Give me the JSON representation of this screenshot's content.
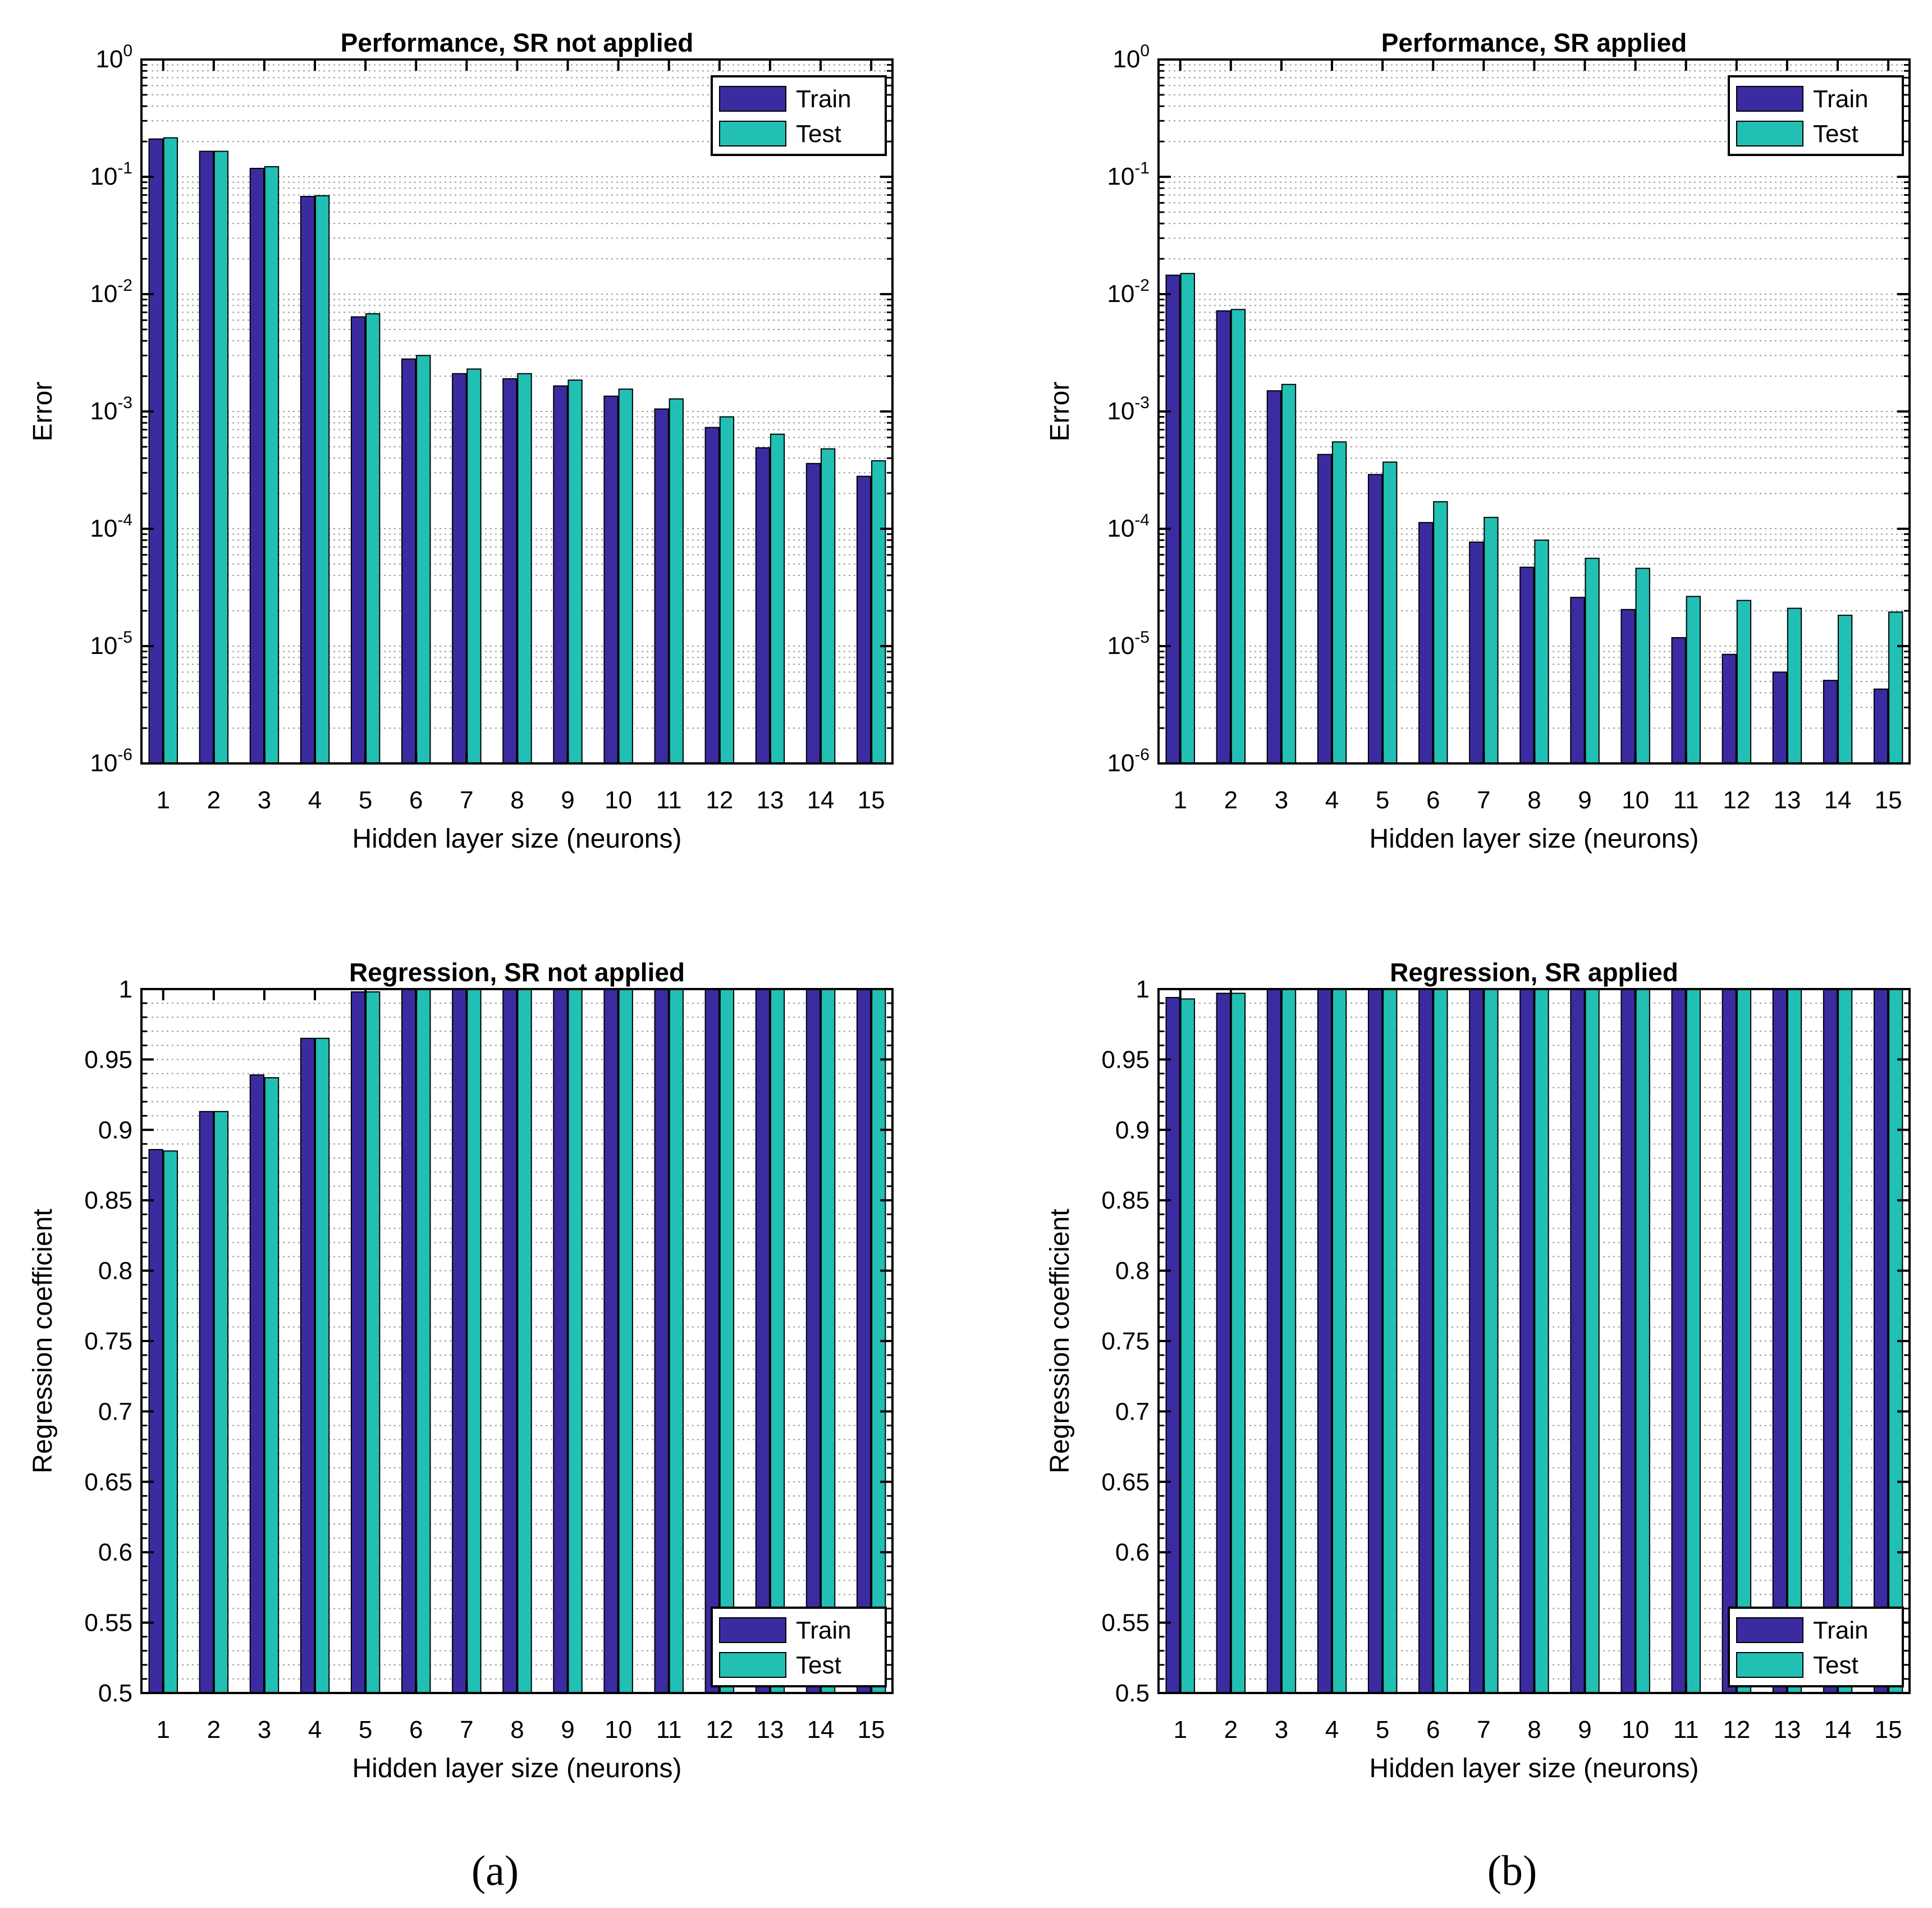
{
  "colors": {
    "train": "#3a2ca0",
    "test": "#22bfb4",
    "axis": "#000000",
    "grid": "#9a9a9a"
  },
  "legend": {
    "train_label": "Train",
    "test_label": "Test"
  },
  "panel_labels": {
    "a": "(a)",
    "b": "(b)"
  },
  "chart_data": [
    {
      "id": "perf-no-sr",
      "type": "bar",
      "title": "Performance, SR not applied",
      "xlabel": "Hidden layer size (neurons)",
      "ylabel": "Error",
      "yscale": "log",
      "ylim": [
        1e-06,
        1
      ],
      "yticks": [
        {
          "value": 1e-06,
          "base": "10",
          "exp": "-6"
        },
        {
          "value": 1e-05,
          "base": "10",
          "exp": "-5"
        },
        {
          "value": 0.0001,
          "base": "10",
          "exp": "-4"
        },
        {
          "value": 0.001,
          "base": "10",
          "exp": "-3"
        },
        {
          "value": 0.01,
          "base": "10",
          "exp": "-2"
        },
        {
          "value": 0.1,
          "base": "10",
          "exp": "-1"
        },
        {
          "value": 1,
          "base": "10",
          "exp": "0"
        }
      ],
      "legend_position": "top-right",
      "grid": true,
      "categories": [
        "1",
        "2",
        "3",
        "4",
        "5",
        "6",
        "7",
        "8",
        "9",
        "10",
        "11",
        "12",
        "13",
        "14",
        "15"
      ],
      "series": [
        {
          "name": "Train",
          "values": [
            0.21,
            0.165,
            0.118,
            0.068,
            0.0064,
            0.0028,
            0.0021,
            0.0019,
            0.00165,
            0.00135,
            0.00105,
            0.00073,
            0.00049,
            0.00036,
            0.00028
          ]
        },
        {
          "name": "Test",
          "values": [
            0.215,
            0.165,
            0.122,
            0.069,
            0.0068,
            0.003,
            0.0023,
            0.0021,
            0.00185,
            0.00155,
            0.00128,
            0.0009,
            0.00064,
            0.00048,
            0.00038
          ]
        }
      ]
    },
    {
      "id": "perf-sr",
      "type": "bar",
      "title": "Performance, SR applied",
      "xlabel": "Hidden layer size (neurons)",
      "ylabel": "Error",
      "yscale": "log",
      "ylim": [
        1e-06,
        1
      ],
      "yticks": [
        {
          "value": 1e-06,
          "base": "10",
          "exp": "-6"
        },
        {
          "value": 1e-05,
          "base": "10",
          "exp": "-5"
        },
        {
          "value": 0.0001,
          "base": "10",
          "exp": "-4"
        },
        {
          "value": 0.001,
          "base": "10",
          "exp": "-3"
        },
        {
          "value": 0.01,
          "base": "10",
          "exp": "-2"
        },
        {
          "value": 0.1,
          "base": "10",
          "exp": "-1"
        },
        {
          "value": 1,
          "base": "10",
          "exp": "0"
        }
      ],
      "legend_position": "top-right",
      "grid": true,
      "categories": [
        "1",
        "2",
        "3",
        "4",
        "5",
        "6",
        "7",
        "8",
        "9",
        "10",
        "11",
        "12",
        "13",
        "14",
        "15"
      ],
      "series": [
        {
          "name": "Train",
          "values": [
            0.0145,
            0.0072,
            0.0015,
            0.00043,
            0.00029,
            0.000113,
            7.7e-05,
            4.7e-05,
            2.6e-05,
            2.05e-05,
            1.18e-05,
            8.5e-06,
            6e-06,
            5.1e-06,
            4.3e-06
          ]
        },
        {
          "name": "Test",
          "values": [
            0.015,
            0.0074,
            0.0017,
            0.00055,
            0.00037,
            0.00017,
            0.000125,
            8e-05,
            5.6e-05,
            4.6e-05,
            2.65e-05,
            2.45e-05,
            2.1e-05,
            1.83e-05,
            1.95e-05
          ]
        }
      ]
    },
    {
      "id": "reg-no-sr",
      "type": "bar",
      "title": "Regression, SR not applied",
      "xlabel": "Hidden layer size (neurons)",
      "ylabel": "Regression coefficient",
      "yscale": "linear",
      "ylim": [
        0.5,
        1
      ],
      "yticks": [
        {
          "value": 0.5,
          "label": "0.5"
        },
        {
          "value": 0.55,
          "label": "0.55"
        },
        {
          "value": 0.6,
          "label": "0.6"
        },
        {
          "value": 0.65,
          "label": "0.65"
        },
        {
          "value": 0.7,
          "label": "0.7"
        },
        {
          "value": 0.75,
          "label": "0.75"
        },
        {
          "value": 0.8,
          "label": "0.8"
        },
        {
          "value": 0.85,
          "label": "0.85"
        },
        {
          "value": 0.9,
          "label": "0.9"
        },
        {
          "value": 0.95,
          "label": "0.95"
        },
        {
          "value": 1,
          "label": "1"
        }
      ],
      "legend_position": "bottom-right",
      "grid": true,
      "categories": [
        "1",
        "2",
        "3",
        "4",
        "5",
        "6",
        "7",
        "8",
        "9",
        "10",
        "11",
        "12",
        "13",
        "14",
        "15"
      ],
      "series": [
        {
          "name": "Train",
          "values": [
            0.886,
            0.913,
            0.939,
            0.965,
            0.998,
            1,
            1,
            1,
            1,
            1,
            1,
            1,
            1,
            1,
            1
          ]
        },
        {
          "name": "Test",
          "values": [
            0.885,
            0.913,
            0.937,
            0.965,
            0.998,
            1,
            1,
            1,
            1,
            1,
            1,
            1,
            1,
            1,
            1
          ]
        }
      ]
    },
    {
      "id": "reg-sr",
      "type": "bar",
      "title": "Regression, SR applied",
      "xlabel": "Hidden layer size (neurons)",
      "ylabel": "Regression coefficient",
      "yscale": "linear",
      "ylim": [
        0.5,
        1
      ],
      "yticks": [
        {
          "value": 0.5,
          "label": "0.5"
        },
        {
          "value": 0.55,
          "label": "0.55"
        },
        {
          "value": 0.6,
          "label": "0.6"
        },
        {
          "value": 0.65,
          "label": "0.65"
        },
        {
          "value": 0.7,
          "label": "0.7"
        },
        {
          "value": 0.75,
          "label": "0.75"
        },
        {
          "value": 0.8,
          "label": "0.8"
        },
        {
          "value": 0.85,
          "label": "0.85"
        },
        {
          "value": 0.9,
          "label": "0.9"
        },
        {
          "value": 0.95,
          "label": "0.95"
        },
        {
          "value": 1,
          "label": "1"
        }
      ],
      "legend_position": "bottom-right",
      "grid": true,
      "categories": [
        "1",
        "2",
        "3",
        "4",
        "5",
        "6",
        "7",
        "8",
        "9",
        "10",
        "11",
        "12",
        "13",
        "14",
        "15"
      ],
      "series": [
        {
          "name": "Train",
          "values": [
            0.994,
            0.997,
            1,
            1,
            1,
            1,
            1,
            1,
            1,
            1,
            1,
            1,
            1,
            1,
            1
          ]
        },
        {
          "name": "Test",
          "values": [
            0.993,
            0.997,
            1,
            1,
            1,
            1,
            1,
            1,
            1,
            1,
            1,
            1,
            1,
            1,
            1
          ]
        }
      ]
    }
  ]
}
